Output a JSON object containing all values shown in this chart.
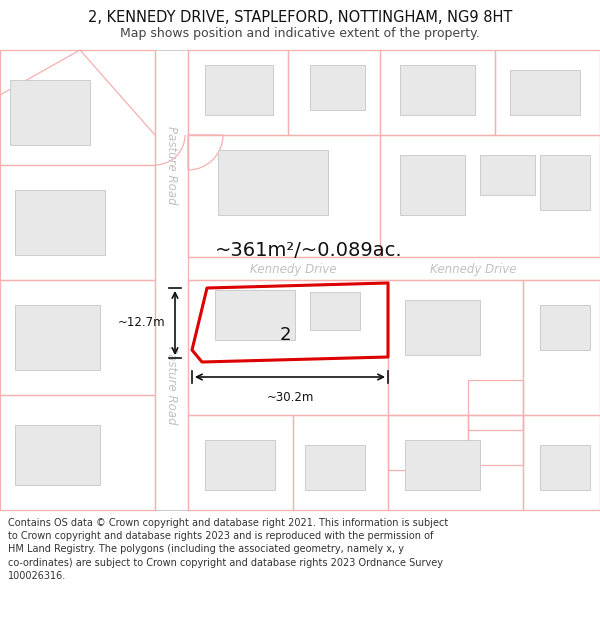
{
  "title_line1": "2, KENNEDY DRIVE, STAPLEFORD, NOTTINGHAM, NG9 8HT",
  "title_line2": "Map shows position and indicative extent of the property.",
  "footer_text": "Contains OS data © Crown copyright and database right 2021. This information is subject to Crown copyright and database rights 2023 and is reproduced with the permission of HM Land Registry. The polygons (including the associated geometry, namely x, y co-ordinates) are subject to Crown copyright and database rights 2023 Ordnance Survey 100026316.",
  "bg_color": "#ffffff",
  "road_color": "#f5b0b0",
  "road_lw": 0.9,
  "building_fill": "#e8e8e8",
  "building_edge": "#cccccc",
  "building_lw": 0.7,
  "property_edge": "#dd0000",
  "property_lw": 2.2,
  "label_color": "#c0c0c0",
  "area_text": "~361m²/~0.089ac.",
  "number_label": "2",
  "dim_width": "~30.2m",
  "dim_height": "~12.7m",
  "title_fontsize": 10.5,
  "subtitle_fontsize": 9,
  "footer_fontsize": 7,
  "street_fontsize": 8.5,
  "area_fontsize": 14,
  "number_fontsize": 13
}
